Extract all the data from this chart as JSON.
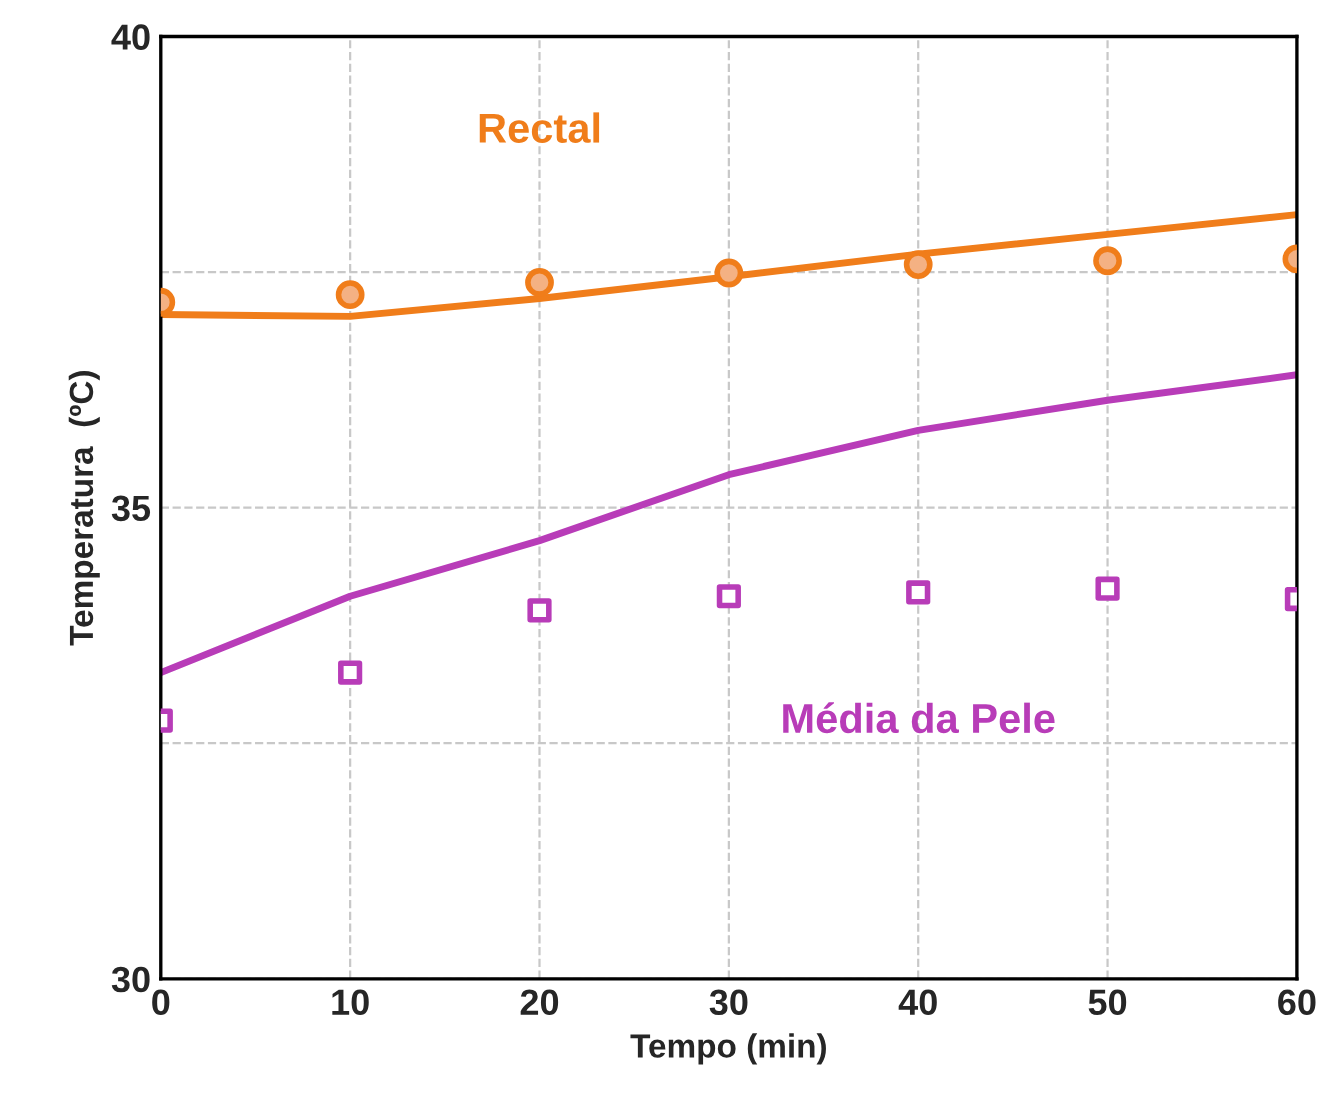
{
  "chart_data": {
    "type": "line",
    "xlabel": "Tempo (min)",
    "ylabel": "Temperatura  (ºC)",
    "x": [
      0,
      10,
      20,
      30,
      40,
      50,
      60
    ],
    "xlim": [
      0,
      60
    ],
    "xticks": [
      0,
      10,
      20,
      30,
      40,
      50,
      60
    ],
    "ylim": [
      30,
      40
    ],
    "yticks": [
      30,
      {
        "value": 32.5,
        "label": null
      },
      35,
      {
        "value": 37.5,
        "label": null
      },
      40
    ],
    "grid": true,
    "legend": false,
    "series": [
      {
        "name": "Rectal",
        "color": "#f07d1a",
        "marker": "none",
        "values": [
          37.05,
          37.03,
          37.22,
          37.45,
          37.69,
          37.9,
          38.11
        ]
      },
      {
        "type": "scatter",
        "color": "#f07d1a",
        "marker": "circle",
        "values": [
          37.18,
          37.26,
          37.39,
          37.49,
          37.58,
          37.62,
          37.64
        ]
      },
      {
        "name": "Média da Pele",
        "color": "#b83cb8",
        "marker": "none",
        "values": [
          33.25,
          34.06,
          34.65,
          35.35,
          35.82,
          36.14,
          36.41
        ]
      },
      {
        "type": "scatter",
        "color": "#b83cb8",
        "marker": "square",
        "values": [
          32.74,
          33.25,
          33.91,
          34.06,
          34.1,
          34.14,
          34.03
        ]
      }
    ]
  }
}
